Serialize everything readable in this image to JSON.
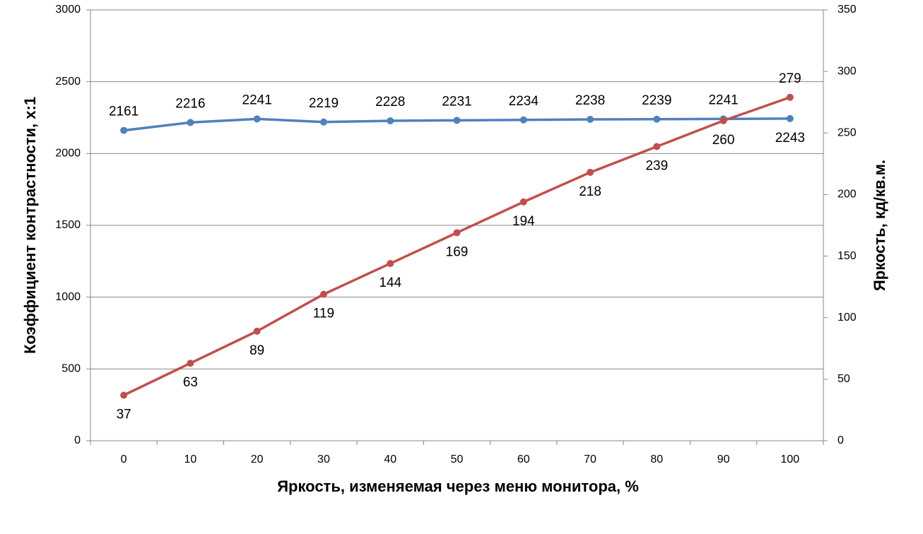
{
  "chart_data": {
    "type": "line",
    "x_label": "Яркость, изменяемая через меню монитора, %",
    "y_label": "Коэффициент контрастности, х:1",
    "y2_label": "Яркость, кд/кв.м.",
    "categories": [
      "0",
      "10",
      "20",
      "30",
      "40",
      "50",
      "60",
      "70",
      "80",
      "90",
      "100"
    ],
    "series": [
      {
        "name": "Коэффициент контрастности",
        "color": "#4f81bd",
        "values": [
          2161,
          2216,
          2241,
          2219,
          2228,
          2231,
          2234,
          2238,
          2239,
          2241,
          2243
        ]
      },
      {
        "name": "Яркость",
        "color": "#c0504d",
        "axis": "y2",
        "values": [
          37,
          63,
          89,
          119,
          144,
          169,
          194,
          218,
          239,
          260,
          279
        ]
      }
    ],
    "ylim": [
      0,
      3000
    ],
    "yticks": [
      0,
      500,
      1000,
      1500,
      2000,
      2500,
      3000
    ],
    "y2lim": [
      0,
      350
    ],
    "y2ticks": [
      0,
      50,
      100,
      150,
      200,
      250,
      300,
      350
    ],
    "grid": true
  }
}
